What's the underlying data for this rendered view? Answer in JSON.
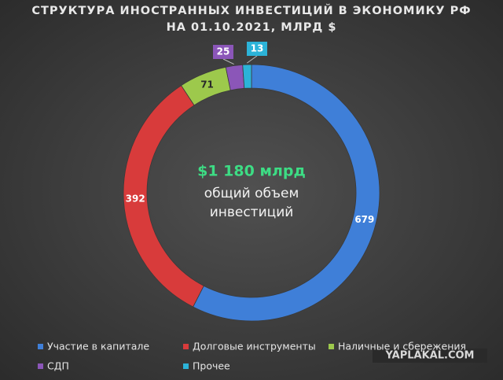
{
  "chart_data": {
    "type": "donut",
    "title": "СТРУКТУРА ИНОСТРАННЫХ ИНВЕСТИЦИЙ В ЭКОНОМИКУ РФ",
    "subtitle": "НА 01.10.2021, МЛРД $",
    "categories": [
      "Участие в капитале",
      "Долговые инструменты",
      "Наличные и сбережения",
      "СДП",
      "Прочее"
    ],
    "values": [
      679,
      392,
      71,
      25,
      13
    ],
    "colors": [
      "#3f7fd8",
      "#d83b3b",
      "#9dc94c",
      "#8b56b8",
      "#2cb3d8"
    ],
    "annotations": [
      "$1 180 млрд",
      "общий объем",
      "инвестиций"
    ],
    "legend": "bottom",
    "watermark": "YAPLAKAL.COM"
  }
}
